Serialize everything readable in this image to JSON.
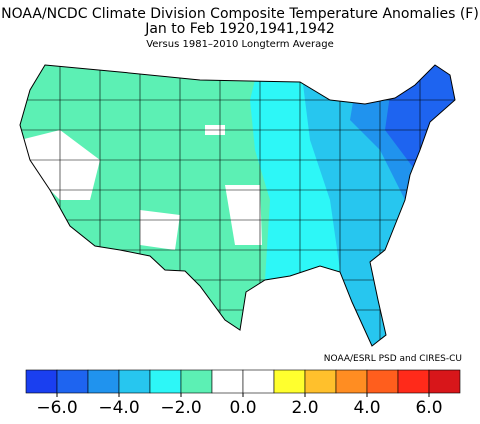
{
  "title": "NOAA/NCDC Climate Division Composite Temperature Anomalies (F)",
  "subtitle": "Jan to Feb  1920,1941,1942",
  "note": "Versus 1981–2010 Longterm Average",
  "credit": "NOAA/ESRL PSD and CIRES-CU",
  "colorbar": {
    "lim": [
      -7,
      7
    ],
    "colors": [
      "#1a3ff0",
      "#1e64f0",
      "#2093ee",
      "#27c6ef",
      "#2df7f7",
      "#5cf0b4",
      "#ffffff",
      "#ffffff",
      "#ffff2e",
      "#ffc02c",
      "#ff8d22",
      "#ff5e1d",
      "#ff2a1a",
      "#d8161a"
    ],
    "ticks": [
      {
        "value": -6,
        "label": "−6.0"
      },
      {
        "value": -4,
        "label": "−4.0"
      },
      {
        "value": -2,
        "label": "−2.0"
      },
      {
        "value": 0,
        "label": "0.0"
      },
      {
        "value": 2,
        "label": "2.0"
      },
      {
        "value": 4,
        "label": "4.0"
      },
      {
        "value": 6,
        "label": "6.0"
      }
    ]
  }
}
